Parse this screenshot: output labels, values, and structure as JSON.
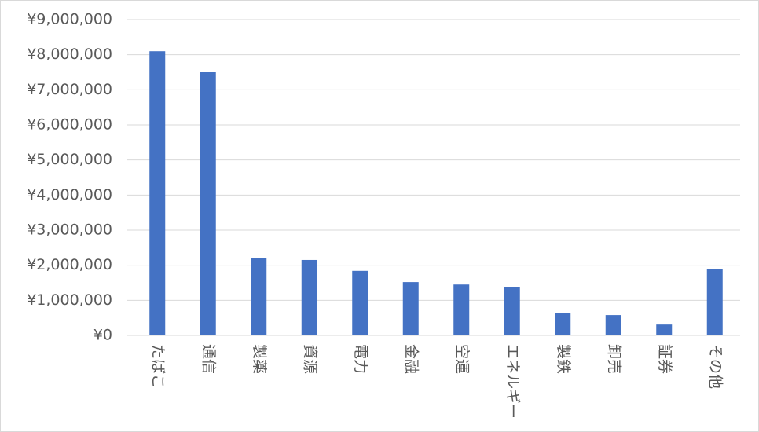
{
  "chart_data": {
    "type": "bar",
    "categories": [
      "たばこ",
      "通信",
      "製薬",
      "資源",
      "電力",
      "金融",
      "空運",
      "エネルギー",
      "製鉄",
      "卸売",
      "証券",
      "その他"
    ],
    "values": [
      8100000,
      7500000,
      2200000,
      2150000,
      1840000,
      1520000,
      1450000,
      1370000,
      630000,
      580000,
      310000,
      1900000
    ],
    "color": "#4472c4",
    "ylim": [
      0,
      9000000
    ],
    "yticks": [
      {
        "value": 0,
        "label": "¥0"
      },
      {
        "value": 1000000,
        "label": "¥1,000,000"
      },
      {
        "value": 2000000,
        "label": "¥2,000,000"
      },
      {
        "value": 3000000,
        "label": "¥3,000,000"
      },
      {
        "value": 4000000,
        "label": "¥4,000,000"
      },
      {
        "value": 5000000,
        "label": "¥5,000,000"
      },
      {
        "value": 6000000,
        "label": "¥6,000,000"
      },
      {
        "value": 7000000,
        "label": "¥7,000,000"
      },
      {
        "value": 8000000,
        "label": "¥8,000,000"
      },
      {
        "value": 9000000,
        "label": "¥9,000,000"
      }
    ],
    "grid": true
  }
}
